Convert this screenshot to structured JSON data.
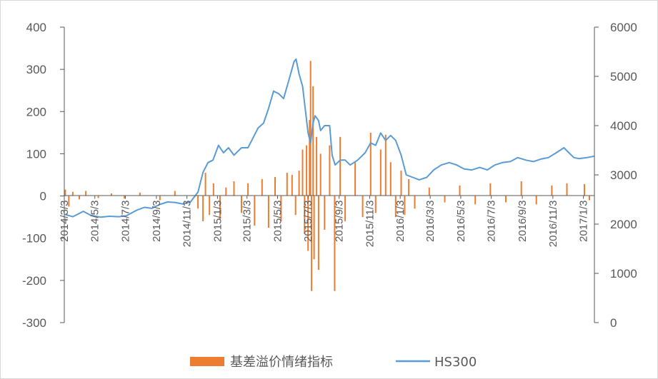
{
  "chart_data": {
    "type": "bar+line",
    "title": "",
    "left_axis": {
      "min": -300,
      "max": 400,
      "ticks": [
        400,
        300,
        200,
        100,
        0,
        -100,
        -200,
        -300
      ]
    },
    "right_axis": {
      "min": 0,
      "max": 6000,
      "ticks": [
        6000,
        5000,
        4000,
        3000,
        2000,
        1000,
        0
      ]
    },
    "x_tick_labels": [
      "2014/3/3",
      "2014/5/3",
      "2014/7/3",
      "2014/9/3",
      "2014/11/3",
      "2015/1/3",
      "2015/3/3",
      "2015/5/3",
      "2015/7/3",
      "2015/9/3",
      "2015/11/3",
      "2016/1/3",
      "2016/3/3",
      "2016/5/3",
      "2016/7/3",
      "2016/9/3",
      "2016/11/3",
      "2017/1/3"
    ],
    "x_range": [
      "2014/3/3",
      "2017/1/25"
    ],
    "series": [
      {
        "name": "基差溢价情绪指标",
        "type": "bar",
        "axis": "left",
        "color": "#ED7D31",
        "points": [
          [
            "2014/3/5",
            15
          ],
          [
            "2014/3/12",
            -25
          ],
          [
            "2014/3/20",
            10
          ],
          [
            "2014/4/2",
            -8
          ],
          [
            "2014/4/15",
            12
          ],
          [
            "2014/5/10",
            -5
          ],
          [
            "2014/6/5",
            6
          ],
          [
            "2014/7/1",
            -6
          ],
          [
            "2014/8/1",
            8
          ],
          [
            "2014/9/10",
            -10
          ],
          [
            "2014/10/10",
            12
          ],
          [
            "2014/11/25",
            -30
          ],
          [
            "2014/12/5",
            -60
          ],
          [
            "2014/12/10",
            55
          ],
          [
            "2014/12/18",
            -45
          ],
          [
            "2014/12/26",
            30
          ],
          [
            "2015/1/8",
            -55
          ],
          [
            "2015/1/20",
            20
          ],
          [
            "2015/2/5",
            35
          ],
          [
            "2015/2/20",
            -40
          ],
          [
            "2015/3/5",
            30
          ],
          [
            "2015/3/18",
            -70
          ],
          [
            "2015/4/2",
            40
          ],
          [
            "2015/4/15",
            -75
          ],
          [
            "2015/4/28",
            45
          ],
          [
            "2015/5/10",
            -60
          ],
          [
            "2015/5/22",
            55
          ],
          [
            "2015/6/1",
            50
          ],
          [
            "2015/6/8",
            -45
          ],
          [
            "2015/6/15",
            60
          ],
          [
            "2015/6/22",
            110
          ],
          [
            "2015/6/26",
            -90
          ],
          [
            "2015/6/30",
            120
          ],
          [
            "2015/7/3",
            -130
          ],
          [
            "2015/7/6",
            180
          ],
          [
            "2015/7/8",
            320
          ],
          [
            "2015/7/10",
            -225
          ],
          [
            "2015/7/13",
            260
          ],
          [
            "2015/7/15",
            -150
          ],
          [
            "2015/7/20",
            140
          ],
          [
            "2015/7/24",
            -175
          ],
          [
            "2015/7/28",
            100
          ],
          [
            "2015/8/5",
            -80
          ],
          [
            "2015/8/15",
            120
          ],
          [
            "2015/8/25",
            -225
          ],
          [
            "2015/9/5",
            140
          ],
          [
            "2015/9/15",
            -60
          ],
          [
            "2015/10/5",
            80
          ],
          [
            "2015/10/20",
            -50
          ],
          [
            "2015/11/5",
            150
          ],
          [
            "2015/11/15",
            -40
          ],
          [
            "2015/11/25",
            110
          ],
          [
            "2015/12/5",
            145
          ],
          [
            "2015/12/15",
            80
          ],
          [
            "2015/12/25",
            -50
          ],
          [
            "2016/1/5",
            60
          ],
          [
            "2016/1/12",
            -45
          ],
          [
            "2016/1/20",
            40
          ],
          [
            "2016/2/1",
            -30
          ],
          [
            "2016/3/1",
            20
          ],
          [
            "2016/4/1",
            -15
          ],
          [
            "2016/5/1",
            25
          ],
          [
            "2016/6/1",
            -20
          ],
          [
            "2016/7/1",
            30
          ],
          [
            "2016/8/1",
            -15
          ],
          [
            "2016/9/1",
            35
          ],
          [
            "2016/10/1",
            -20
          ],
          [
            "2016/11/1",
            25
          ],
          [
            "2016/12/1",
            30
          ],
          [
            "2017/1/5",
            28
          ],
          [
            "2017/1/15",
            -10
          ]
        ]
      },
      {
        "name": "HS300",
        "type": "line",
        "axis": "right",
        "color": "#5B9BD5",
        "points": [
          [
            "2014/3/3",
            2200
          ],
          [
            "2014/3/20",
            2150
          ],
          [
            "2014/4/10",
            2260
          ],
          [
            "2014/4/25",
            2180
          ],
          [
            "2014/5/15",
            2140
          ],
          [
            "2014/6/1",
            2160
          ],
          [
            "2014/6/20",
            2150
          ],
          [
            "2014/7/5",
            2170
          ],
          [
            "2014/7/25",
            2280
          ],
          [
            "2014/8/10",
            2340
          ],
          [
            "2014/8/25",
            2320
          ],
          [
            "2014/9/10",
            2400
          ],
          [
            "2014/9/25",
            2450
          ],
          [
            "2014/10/10",
            2440
          ],
          [
            "2014/10/25",
            2410
          ],
          [
            "2014/11/10",
            2450
          ],
          [
            "2014/11/25",
            2650
          ],
          [
            "2014/12/5",
            3050
          ],
          [
            "2014/12/15",
            3250
          ],
          [
            "2014/12/25",
            3300
          ],
          [
            "2015/1/5",
            3600
          ],
          [
            "2015/1/15",
            3450
          ],
          [
            "2015/1/25",
            3550
          ],
          [
            "2015/2/5",
            3400
          ],
          [
            "2015/2/20",
            3550
          ],
          [
            "2015/3/5",
            3550
          ],
          [
            "2015/3/15",
            3750
          ],
          [
            "2015/3/25",
            3950
          ],
          [
            "2015/4/5",
            4050
          ],
          [
            "2015/4/15",
            4350
          ],
          [
            "2015/4/25",
            4700
          ],
          [
            "2015/5/5",
            4650
          ],
          [
            "2015/5/15",
            4550
          ],
          [
            "2015/5/25",
            4900
          ],
          [
            "2015/6/5",
            5300
          ],
          [
            "2015/6/9",
            5350
          ],
          [
            "2015/6/15",
            5050
          ],
          [
            "2015/6/22",
            4800
          ],
          [
            "2015/6/29",
            4200
          ],
          [
            "2015/7/3",
            3850
          ],
          [
            "2015/7/8",
            3650
          ],
          [
            "2015/7/13",
            4050
          ],
          [
            "2015/7/17",
            4200
          ],
          [
            "2015/7/24",
            4100
          ],
          [
            "2015/7/28",
            3900
          ],
          [
            "2015/8/5",
            4000
          ],
          [
            "2015/8/15",
            4000
          ],
          [
            "2015/8/20",
            3400
          ],
          [
            "2015/8/26",
            3200
          ],
          [
            "2015/9/5",
            3300
          ],
          [
            "2015/9/15",
            3300
          ],
          [
            "2015/9/25",
            3200
          ],
          [
            "2015/10/10",
            3300
          ],
          [
            "2015/10/25",
            3450
          ],
          [
            "2015/11/5",
            3650
          ],
          [
            "2015/11/15",
            3600
          ],
          [
            "2015/11/25",
            3850
          ],
          [
            "2015/12/5",
            3700
          ],
          [
            "2015/12/15",
            3800
          ],
          [
            "2015/12/25",
            3700
          ],
          [
            "2016/1/5",
            3400
          ],
          [
            "2016/1/15",
            3000
          ],
          [
            "2016/1/28",
            2950
          ],
          [
            "2016/2/10",
            2900
          ],
          [
            "2016/2/25",
            2950
          ],
          [
            "2016/3/10",
            3100
          ],
          [
            "2016/3/25",
            3200
          ],
          [
            "2016/4/10",
            3250
          ],
          [
            "2016/4/25",
            3200
          ],
          [
            "2016/5/10",
            3120
          ],
          [
            "2016/5/25",
            3100
          ],
          [
            "2016/6/10",
            3150
          ],
          [
            "2016/6/25",
            3100
          ],
          [
            "2016/7/10",
            3200
          ],
          [
            "2016/7/25",
            3250
          ],
          [
            "2016/8/10",
            3270
          ],
          [
            "2016/8/25",
            3350
          ],
          [
            "2016/9/10",
            3300
          ],
          [
            "2016/9/25",
            3270
          ],
          [
            "2016/10/10",
            3320
          ],
          [
            "2016/10/25",
            3350
          ],
          [
            "2016/11/10",
            3450
          ],
          [
            "2016/11/25",
            3550
          ],
          [
            "2016/12/5",
            3450
          ],
          [
            "2016/12/15",
            3350
          ],
          [
            "2016/12/25",
            3330
          ],
          [
            "2017/1/10",
            3350
          ],
          [
            "2017/1/25",
            3380
          ]
        ]
      }
    ],
    "grid": false,
    "legend_position": "bottom"
  }
}
